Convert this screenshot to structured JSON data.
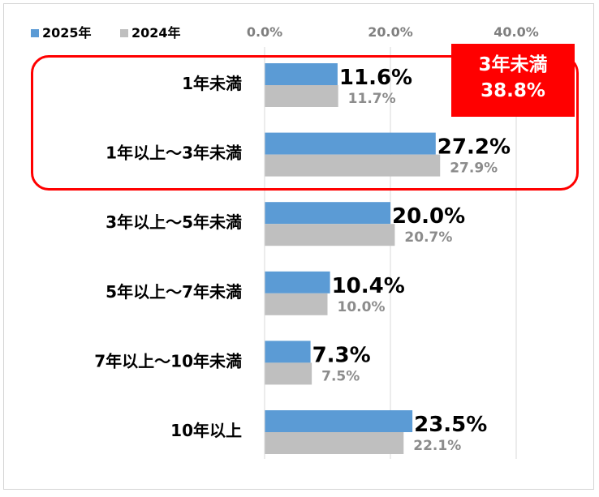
{
  "chart_data": {
    "type": "bar",
    "orientation": "horizontal",
    "categories": [
      "1年未満",
      "1年以上～3年未満",
      "3年以上～5年未満",
      "5年以上～7年未満",
      "7年以上～10年未満",
      "10年以上"
    ],
    "series": [
      {
        "name": "2025年",
        "values": [
          11.6,
          27.2,
          20.0,
          10.4,
          7.3,
          23.5
        ],
        "labels": [
          "11.6%",
          "27.2%",
          "20.0%",
          "10.4%",
          "7.3%",
          "23.5%"
        ],
        "color": "#5b9bd5"
      },
      {
        "name": "2024年",
        "values": [
          11.7,
          27.9,
          20.7,
          10.0,
          7.5,
          22.1
        ],
        "labels": [
          "11.7%",
          "27.9%",
          "20.7%",
          "10.0%",
          "7.5%",
          "22.1%"
        ],
        "color": "#bfbfbf"
      }
    ],
    "xlim": [
      0,
      50
    ],
    "ticks": [
      0,
      20,
      40
    ],
    "tick_labels": [
      "0.0%",
      "20.0%",
      "40.0%"
    ],
    "legend": "top-left",
    "gridlines": true,
    "annotation": {
      "line1": "3年未満",
      "line2": "38.8%",
      "color": "#ff0000"
    }
  }
}
